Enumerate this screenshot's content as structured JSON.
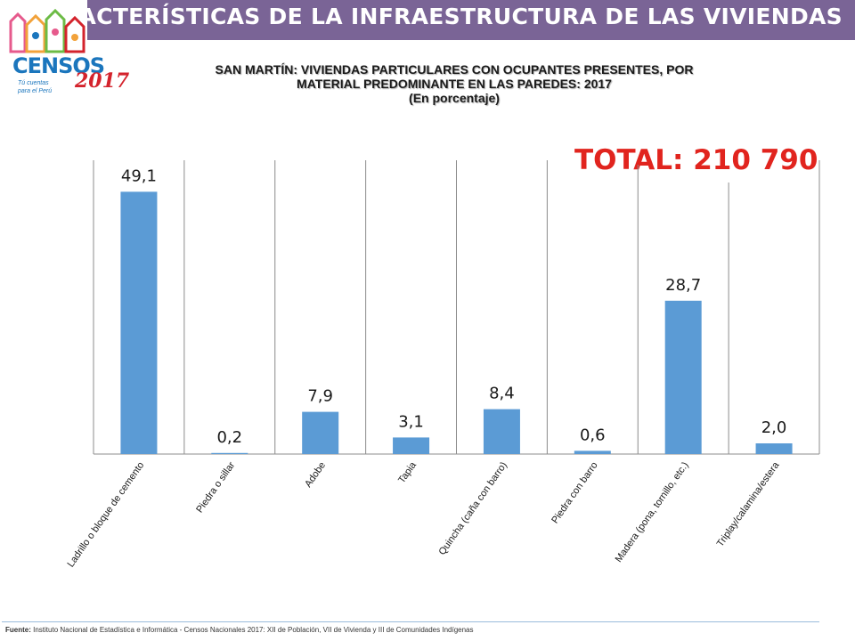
{
  "header": {
    "title": "CARACTERÍSTICAS DE LA INFRAESTRUCTURA DE LAS VIVIENDAS"
  },
  "logo": {
    "name": "CENSOS",
    "year": "2017",
    "tagline_1": "Tú cuentas",
    "tagline_2": "para el Perú"
  },
  "chart_data": {
    "type": "bar",
    "title_lines": [
      "SAN MARTÍN: VIVIENDAS PARTICULARES CON OCUPANTES PRESENTES, POR",
      "MATERIAL PREDOMINANTE EN LAS PAREDES: 2017",
      "(En porcentaje)"
    ],
    "categories": [
      "Ladrillo o bloque de cemento",
      "Piedra o sillar",
      "Adobe",
      "Tapia",
      "Quincha (caña con barro)",
      "Piedra con barro",
      "Madera (pona, tornillo, etc.)",
      "Triplay/calamina/estera"
    ],
    "values": [
      49.1,
      0.2,
      7.9,
      3.1,
      8.4,
      0.6,
      28.7,
      2.0
    ],
    "value_labels": [
      "49,1",
      "0,2",
      "7,9",
      "3,1",
      "8,4",
      "0,6",
      "28,7",
      "2,0"
    ],
    "ylim": [
      0,
      55
    ],
    "bar_color": "#5b9bd5",
    "grid": "vertical",
    "total_label": "TOTAL:",
    "total_value": "210 790",
    "total_color": "#e1241e"
  },
  "footer": {
    "label": "Fuente:",
    "text": "Instituto Nacional de Estadística e Informática - Censos Nacionales 2017: XII de Población, VII de Vivienda y III de Comunidades Indígenas"
  }
}
